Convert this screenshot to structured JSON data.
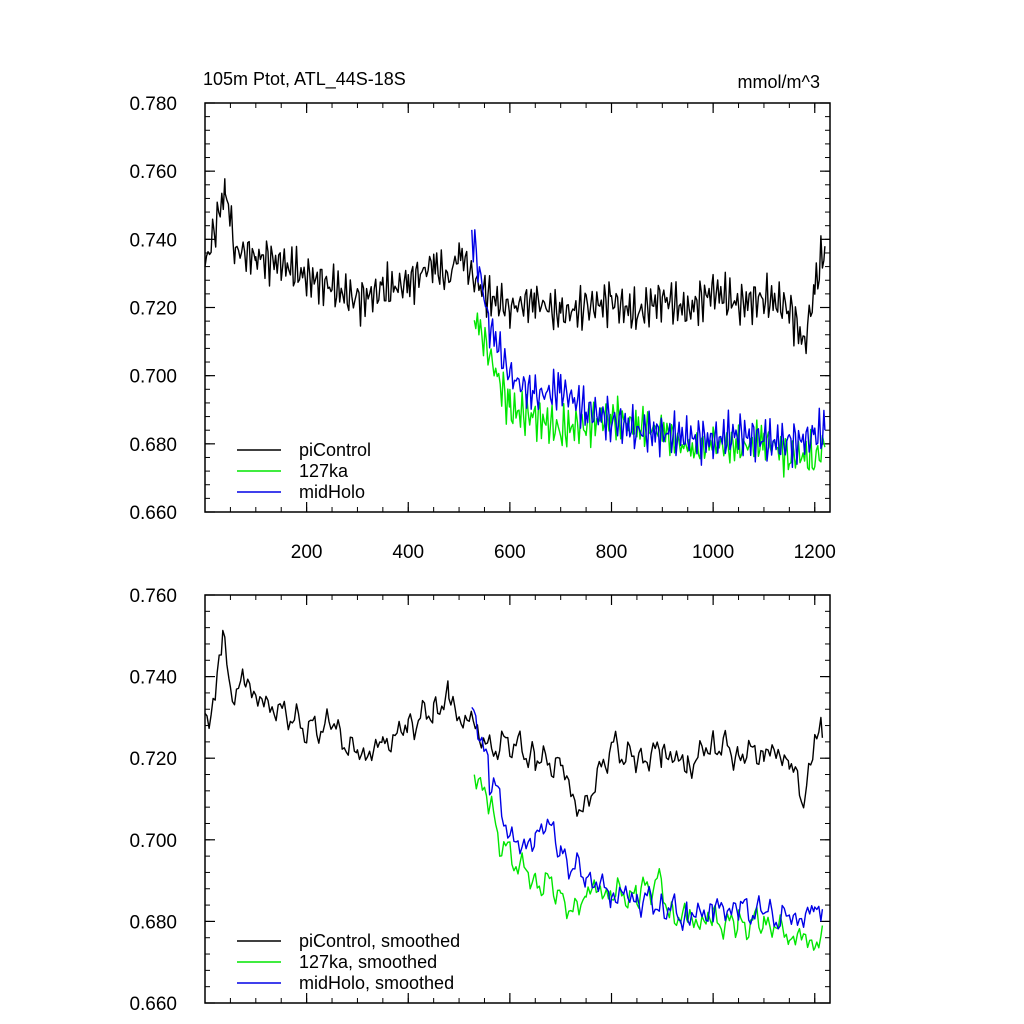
{
  "colors": {
    "piControl": "#000000",
    "127ka": "#00e600",
    "midHolo": "#0000e6"
  },
  "chart_data": [
    {
      "type": "line",
      "title": "105m Ptot, ATL_44S-18S",
      "units": "mmol/m^3",
      "xlim": [
        0,
        1230
      ],
      "ylim": [
        0.66,
        0.78
      ],
      "xticks": [
        200,
        400,
        600,
        800,
        1000,
        1200
      ],
      "xtick_labels": [
        "200",
        "400",
        "600",
        "800",
        "1000",
        "1200"
      ],
      "yticks": [
        0.66,
        0.68,
        0.7,
        0.72,
        0.74,
        0.76,
        0.78
      ],
      "ytick_labels": [
        "0.660",
        "0.680",
        "0.700",
        "0.720",
        "0.740",
        "0.760",
        "0.780"
      ],
      "legend_position": "bottom-left",
      "series": [
        {
          "name": "piControl",
          "color_key": "piControl",
          "x": [
            0,
            40,
            60,
            100,
            150,
            200,
            250,
            300,
            350,
            400,
            450,
            480,
            500,
            530,
            560,
            600,
            650,
            700,
            750,
            800,
            850,
            900,
            950,
            1000,
            1050,
            1100,
            1150,
            1180,
            1200,
            1220
          ],
          "y": [
            0.732,
            0.755,
            0.737,
            0.735,
            0.733,
            0.729,
            0.726,
            0.722,
            0.725,
            0.727,
            0.733,
            0.728,
            0.737,
            0.728,
            0.723,
            0.72,
            0.722,
            0.718,
            0.72,
            0.722,
            0.718,
            0.723,
            0.719,
            0.725,
            0.721,
            0.723,
            0.72,
            0.709,
            0.726,
            0.738
          ]
        },
        {
          "name": "127ka",
          "color_key": "127ka",
          "x": [
            530,
            560,
            600,
            650,
            700,
            750,
            800,
            850,
            900,
            950,
            1000,
            1050,
            1100,
            1150,
            1200,
            1220
          ],
          "y": [
            0.718,
            0.706,
            0.69,
            0.688,
            0.684,
            0.686,
            0.688,
            0.685,
            0.684,
            0.678,
            0.68,
            0.679,
            0.681,
            0.677,
            0.676,
            0.679
          ]
        },
        {
          "name": "midHolo",
          "color_key": "midHolo",
          "x": [
            525,
            560,
            600,
            650,
            700,
            750,
            800,
            850,
            900,
            950,
            1000,
            1050,
            1100,
            1150,
            1200,
            1220
          ],
          "y": [
            0.742,
            0.715,
            0.7,
            0.694,
            0.696,
            0.69,
            0.687,
            0.684,
            0.683,
            0.682,
            0.681,
            0.683,
            0.681,
            0.68,
            0.682,
            0.684
          ]
        }
      ]
    },
    {
      "type": "line",
      "xlim": [
        0,
        1230
      ],
      "ylim": [
        0.66,
        0.76
      ],
      "xticks": [
        200,
        400,
        600,
        800,
        1000,
        1200
      ],
      "yticks": [
        0.66,
        0.68,
        0.7,
        0.72,
        0.74,
        0.76
      ],
      "ytick_labels": [
        "0.660",
        "0.680",
        "0.700",
        "0.720",
        "0.740",
        "0.760"
      ],
      "legend_position": "bottom-left",
      "series": [
        {
          "name": "piControl, smoothed",
          "color_key": "piControl",
          "x": [
            0,
            20,
            35,
            50,
            80,
            120,
            160,
            200,
            250,
            300,
            350,
            400,
            450,
            480,
            500,
            520,
            560,
            600,
            650,
            700,
            740,
            800,
            850,
            900,
            950,
            1000,
            1050,
            1100,
            1150,
            1180,
            1200,
            1215
          ],
          "y": [
            0.731,
            0.733,
            0.752,
            0.736,
            0.738,
            0.733,
            0.731,
            0.727,
            0.728,
            0.72,
            0.723,
            0.728,
            0.732,
            0.735,
            0.729,
            0.73,
            0.722,
            0.724,
            0.72,
            0.718,
            0.706,
            0.723,
            0.719,
            0.722,
            0.718,
            0.724,
            0.721,
            0.722,
            0.72,
            0.708,
            0.727,
            0.725
          ]
        },
        {
          "name": "127ka, smoothed",
          "color_key": "127ka",
          "x": [
            530,
            560,
            580,
            600,
            650,
            700,
            720,
            750,
            800,
            850,
            890,
            920,
            950,
            1000,
            1050,
            1100,
            1150,
            1200,
            1215
          ],
          "y": [
            0.717,
            0.708,
            0.7,
            0.696,
            0.69,
            0.688,
            0.681,
            0.688,
            0.687,
            0.686,
            0.69,
            0.682,
            0.68,
            0.68,
            0.679,
            0.68,
            0.677,
            0.675,
            0.679
          ]
        },
        {
          "name": "midHolo, smoothed",
          "color_key": "midHolo",
          "x": [
            525,
            545,
            560,
            580,
            600,
            650,
            670,
            700,
            750,
            800,
            850,
            900,
            950,
            1000,
            1050,
            1100,
            1150,
            1200,
            1215
          ],
          "y": [
            0.732,
            0.725,
            0.715,
            0.71,
            0.7,
            0.698,
            0.706,
            0.696,
            0.691,
            0.687,
            0.686,
            0.684,
            0.681,
            0.683,
            0.683,
            0.682,
            0.68,
            0.682,
            0.683
          ]
        }
      ]
    }
  ]
}
